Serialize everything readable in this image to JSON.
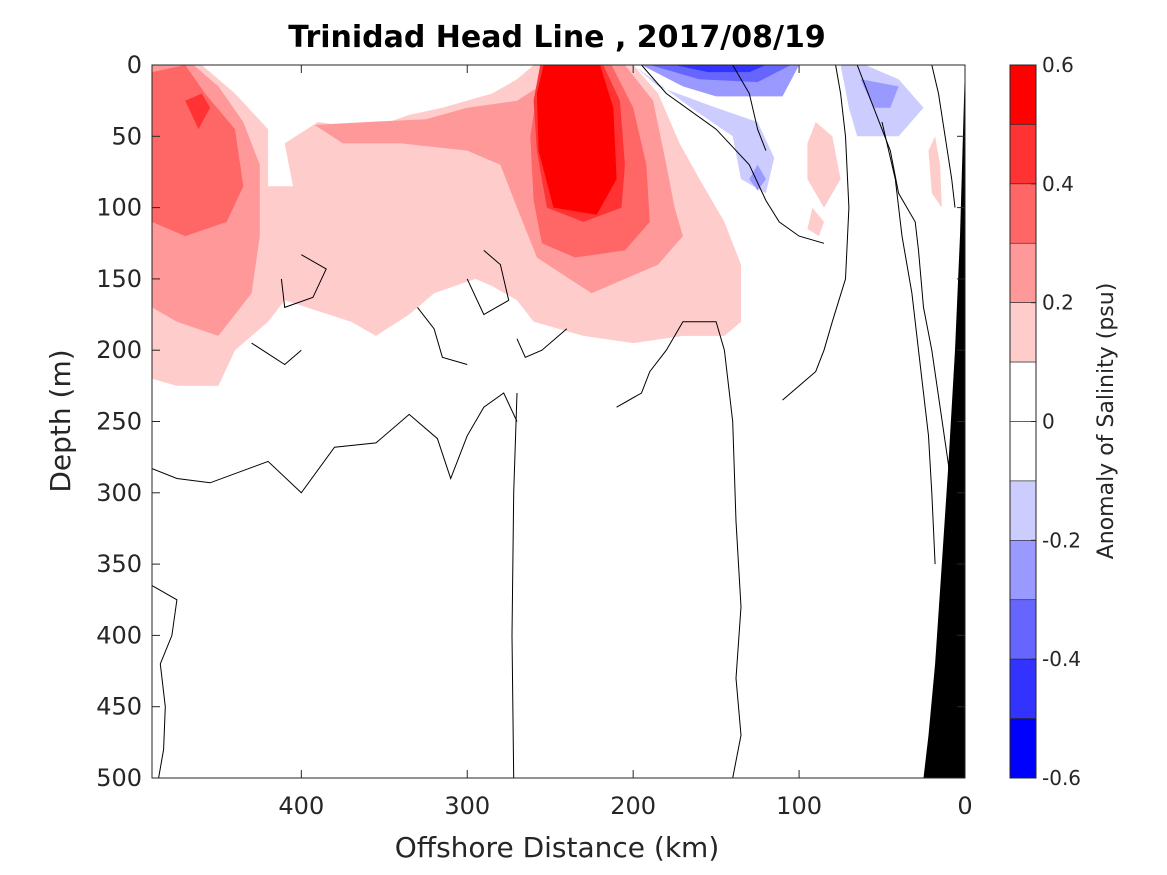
{
  "chart_data": {
    "type": "heatmap",
    "subtype": "filled-contour section",
    "title": "Trinidad Head Line , 2017/08/19",
    "xlabel": "Offshore Distance (km)",
    "ylabel": "Depth (m)",
    "colorbar_label": "Anomaly of Salinity (psu)",
    "xlim": [
      490,
      0
    ],
    "x_reversed": true,
    "ylim": [
      0,
      500
    ],
    "y_reversed": true,
    "x_ticks": [
      400,
      300,
      200,
      100,
      0
    ],
    "x_tick_labels": [
      "400",
      "300",
      "200",
      "100",
      "0"
    ],
    "y_ticks": [
      0,
      50,
      100,
      150,
      200,
      250,
      300,
      350,
      400,
      450,
      500
    ],
    "y_tick_labels": [
      "0",
      "50",
      "100",
      "150",
      "200",
      "250",
      "300",
      "350",
      "400",
      "450",
      "500"
    ],
    "colorbar_ticks": [
      0.6,
      0.4,
      0.2,
      0,
      -0.2,
      -0.4,
      -0.6
    ],
    "colorbar_tick_labels": [
      "0.6",
      "0.4",
      "0.2",
      "0",
      "-0.2",
      "-0.4",
      "-0.6"
    ],
    "color_levels": [
      {
        "min": 0.5,
        "max": 0.6,
        "color": "#ff0000"
      },
      {
        "min": 0.4,
        "max": 0.5,
        "color": "#ff3333"
      },
      {
        "min": 0.3,
        "max": 0.4,
        "color": "#ff6666"
      },
      {
        "min": 0.2,
        "max": 0.3,
        "color": "#ff9999"
      },
      {
        "min": 0.1,
        "max": 0.2,
        "color": "#ffcccc"
      },
      {
        "min": 0.0,
        "max": 0.1,
        "color": "#ffffff"
      },
      {
        "min": -0.1,
        "max": 0.0,
        "color": "#ffffff"
      },
      {
        "min": -0.2,
        "max": -0.1,
        "color": "#ccccff"
      },
      {
        "min": -0.3,
        "max": -0.2,
        "color": "#9999ff"
      },
      {
        "min": -0.4,
        "max": -0.3,
        "color": "#6666ff"
      },
      {
        "min": -0.5,
        "max": -0.4,
        "color": "#3333ff"
      },
      {
        "min": -0.6,
        "max": -0.5,
        "color": "#0000ff"
      }
    ],
    "regions": [
      {
        "level": 0.15,
        "points": [
          [
            490,
            0
          ],
          [
            460,
            0
          ],
          [
            440,
            20
          ],
          [
            420,
            45
          ],
          [
            420,
            85
          ],
          [
            405,
            85
          ],
          [
            410,
            55
          ],
          [
            390,
            40
          ],
          [
            360,
            45
          ],
          [
            335,
            35
          ],
          [
            315,
            30
          ],
          [
            285,
            20
          ],
          [
            270,
            10
          ],
          [
            260,
            0
          ],
          [
            200,
            0
          ],
          [
            185,
            20
          ],
          [
            172,
            55
          ],
          [
            160,
            80
          ],
          [
            145,
            110
          ],
          [
            135,
            140
          ],
          [
            135,
            180
          ],
          [
            145,
            190
          ],
          [
            170,
            190
          ],
          [
            200,
            195
          ],
          [
            230,
            190
          ],
          [
            260,
            180
          ],
          [
            270,
            165
          ],
          [
            285,
            155
          ],
          [
            295,
            150
          ],
          [
            320,
            160
          ],
          [
            335,
            175
          ],
          [
            355,
            190
          ],
          [
            370,
            180
          ],
          [
            410,
            165
          ],
          [
            420,
            180
          ],
          [
            440,
            200
          ],
          [
            450,
            225
          ],
          [
            475,
            225
          ],
          [
            490,
            220
          ]
        ]
      },
      {
        "level": 0.25,
        "points": [
          [
            490,
            0
          ],
          [
            465,
            0
          ],
          [
            450,
            15
          ],
          [
            435,
            40
          ],
          [
            425,
            70
          ],
          [
            425,
            120
          ],
          [
            430,
            160
          ],
          [
            450,
            190
          ],
          [
            475,
            180
          ],
          [
            490,
            170
          ]
        ]
      },
      {
        "level": 0.25,
        "points": [
          [
            392,
            42
          ],
          [
            360,
            40
          ],
          [
            325,
            38
          ],
          [
            300,
            30
          ],
          [
            270,
            25
          ],
          [
            250,
            10
          ],
          [
            245,
            0
          ],
          [
            205,
            0
          ],
          [
            188,
            25
          ],
          [
            180,
            70
          ],
          [
            175,
            100
          ],
          [
            170,
            120
          ],
          [
            185,
            140
          ],
          [
            225,
            160
          ],
          [
            245,
            145
          ],
          [
            258,
            135
          ],
          [
            270,
            100
          ],
          [
            280,
            70
          ],
          [
            300,
            60
          ],
          [
            340,
            55
          ],
          [
            375,
            55
          ]
        ]
      },
      {
        "level": 0.35,
        "points": [
          [
            490,
            5
          ],
          [
            470,
            0
          ],
          [
            458,
            20
          ],
          [
            440,
            45
          ],
          [
            435,
            85
          ],
          [
            445,
            110
          ],
          [
            470,
            120
          ],
          [
            490,
            110
          ]
        ]
      },
      {
        "level": 0.35,
        "points": [
          [
            253,
            0
          ],
          [
            213,
            0
          ],
          [
            200,
            30
          ],
          [
            192,
            70
          ],
          [
            190,
            110
          ],
          [
            205,
            130
          ],
          [
            235,
            135
          ],
          [
            255,
            125
          ],
          [
            260,
            95
          ],
          [
            262,
            50
          ],
          [
            258,
            20
          ]
        ]
      },
      {
        "level": 0.45,
        "points": [
          [
            256,
            0
          ],
          [
            218,
            0
          ],
          [
            208,
            25
          ],
          [
            205,
            70
          ],
          [
            207,
            100
          ],
          [
            230,
            110
          ],
          [
            252,
            100
          ],
          [
            258,
            60
          ],
          [
            260,
            25
          ]
        ]
      },
      {
        "level": 0.55,
        "points": [
          [
            254,
            0
          ],
          [
            220,
            0
          ],
          [
            212,
            30
          ],
          [
            210,
            80
          ],
          [
            222,
            105
          ],
          [
            248,
            100
          ],
          [
            257,
            60
          ],
          [
            258,
            20
          ]
        ]
      },
      {
        "level": 0.45,
        "points": [
          [
            470,
            25
          ],
          [
            460,
            20
          ],
          [
            455,
            30
          ],
          [
            462,
            45
          ]
        ]
      },
      {
        "level": 0.15,
        "points": [
          [
            90,
            40
          ],
          [
            80,
            50
          ],
          [
            75,
            80
          ],
          [
            85,
            100
          ],
          [
            95,
            80
          ],
          [
            95,
            55
          ]
        ]
      },
      {
        "level": 0.15,
        "points": [
          [
            92,
            100
          ],
          [
            85,
            110
          ],
          [
            88,
            120
          ],
          [
            95,
            115
          ]
        ]
      },
      {
        "level": 0.15,
        "points": [
          [
            18,
            50
          ],
          [
            15,
            70
          ],
          [
            14,
            100
          ],
          [
            20,
            90
          ],
          [
            22,
            60
          ]
        ]
      },
      {
        "level": -0.15,
        "points": [
          [
            200,
            0
          ],
          [
            185,
            15
          ],
          [
            150,
            30
          ],
          [
            125,
            40
          ],
          [
            115,
            65
          ],
          [
            120,
            90
          ],
          [
            135,
            80
          ],
          [
            140,
            50
          ],
          [
            165,
            30
          ]
        ]
      },
      {
        "level": -0.15,
        "points": [
          [
            75,
            0
          ],
          [
            70,
            30
          ],
          [
            65,
            50
          ],
          [
            40,
            50
          ],
          [
            25,
            30
          ],
          [
            40,
            10
          ],
          [
            60,
            0
          ]
        ]
      },
      {
        "level": -0.25,
        "points": [
          [
            195,
            0
          ],
          [
            170,
            15
          ],
          [
            150,
            22
          ],
          [
            110,
            22
          ],
          [
            100,
            0
          ]
        ]
      },
      {
        "level": -0.35,
        "points": [
          [
            190,
            0
          ],
          [
            160,
            10
          ],
          [
            125,
            12
          ],
          [
            105,
            0
          ]
        ]
      },
      {
        "level": -0.45,
        "points": [
          [
            175,
            0
          ],
          [
            155,
            5
          ],
          [
            130,
            5
          ],
          [
            120,
            0
          ]
        ]
      },
      {
        "level": -0.25,
        "points": [
          [
            63,
            10
          ],
          [
            55,
            30
          ],
          [
            45,
            30
          ],
          [
            40,
            15
          ]
        ]
      },
      {
        "level": -0.25,
        "points": [
          [
            125,
            70
          ],
          [
            120,
            80
          ],
          [
            125,
            88
          ],
          [
            130,
            80
          ]
        ]
      }
    ],
    "contours": [
      [
        [
          490,
          283
        ],
        [
          475,
          290
        ],
        [
          455,
          293
        ],
        [
          420,
          278
        ],
        [
          400,
          300
        ],
        [
          380,
          268
        ],
        [
          355,
          265
        ],
        [
          335,
          245
        ],
        [
          318,
          262
        ],
        [
          310,
          290
        ],
        [
          300,
          260
        ],
        [
          290,
          240
        ],
        [
          278,
          230
        ],
        [
          270,
          250
        ]
      ],
      [
        [
          270,
          230
        ],
        [
          272,
          300
        ],
        [
          273,
          400
        ],
        [
          272,
          500
        ]
      ],
      [
        [
          300,
          210
        ],
        [
          315,
          205
        ],
        [
          320,
          185
        ],
        [
          330,
          170
        ]
      ],
      [
        [
          400,
          133
        ],
        [
          385,
          143
        ],
        [
          393,
          163
        ],
        [
          410,
          170
        ],
        [
          412,
          150
        ]
      ],
      [
        [
          490,
          365
        ],
        [
          475,
          375
        ],
        [
          478,
          400
        ],
        [
          485,
          420
        ],
        [
          482,
          450
        ],
        [
          483,
          480
        ],
        [
          486,
          500
        ]
      ],
      [
        [
          140,
          500
        ],
        [
          135,
          470
        ],
        [
          138,
          430
        ],
        [
          135,
          380
        ],
        [
          138,
          320
        ],
        [
          140,
          250
        ],
        [
          145,
          200
        ],
        [
          150,
          180
        ],
        [
          170,
          180
        ],
        [
          180,
          200
        ],
        [
          190,
          215
        ],
        [
          195,
          230
        ],
        [
          210,
          240
        ]
      ],
      [
        [
          195,
          0
        ],
        [
          180,
          20
        ],
        [
          150,
          45
        ],
        [
          130,
          70
        ],
        [
          120,
          95
        ],
        [
          112,
          110
        ],
        [
          100,
          120
        ],
        [
          85,
          125
        ]
      ],
      [
        [
          140,
          0
        ],
        [
          130,
          20
        ],
        [
          125,
          45
        ],
        [
          120,
          60
        ]
      ],
      [
        [
          78,
          0
        ],
        [
          75,
          20
        ],
        [
          72,
          50
        ],
        [
          70,
          100
        ],
        [
          72,
          150
        ],
        [
          80,
          180
        ],
        [
          85,
          200
        ],
        [
          90,
          215
        ],
        [
          105,
          230
        ],
        [
          110,
          235
        ]
      ],
      [
        [
          65,
          0
        ],
        [
          55,
          30
        ],
        [
          45,
          60
        ],
        [
          40,
          90
        ],
        [
          30,
          110
        ],
        [
          28,
          130
        ],
        [
          25,
          170
        ],
        [
          20,
          200
        ],
        [
          15,
          240
        ],
        [
          10,
          280
        ],
        [
          8,
          320
        ],
        [
          5,
          350
        ],
        [
          3,
          370
        ]
      ],
      [
        [
          50,
          40
        ],
        [
          42,
          80
        ],
        [
          38,
          120
        ],
        [
          32,
          160
        ],
        [
          28,
          200
        ],
        [
          22,
          260
        ],
        [
          20,
          300
        ],
        [
          18,
          350
        ]
      ],
      [
        [
          20,
          0
        ],
        [
          16,
          20
        ],
        [
          12,
          50
        ],
        [
          8,
          80
        ],
        [
          6,
          100
        ]
      ],
      [
        [
          290,
          130
        ],
        [
          280,
          140
        ],
        [
          275,
          165
        ],
        [
          290,
          175
        ],
        [
          300,
          150
        ]
      ],
      [
        [
          240,
          185
        ],
        [
          255,
          200
        ],
        [
          265,
          205
        ],
        [
          270,
          192
        ]
      ],
      [
        [
          400,
          200
        ],
        [
          410,
          210
        ],
        [
          430,
          195
        ]
      ]
    ],
    "bathymetry": [
      [
        25,
        500
      ],
      [
        0,
        500
      ],
      [
        0,
        0
      ],
      [
        3,
        120
      ],
      [
        6,
        200
      ],
      [
        10,
        280
      ],
      [
        14,
        350
      ],
      [
        18,
        420
      ],
      [
        22,
        470
      ]
    ]
  }
}
